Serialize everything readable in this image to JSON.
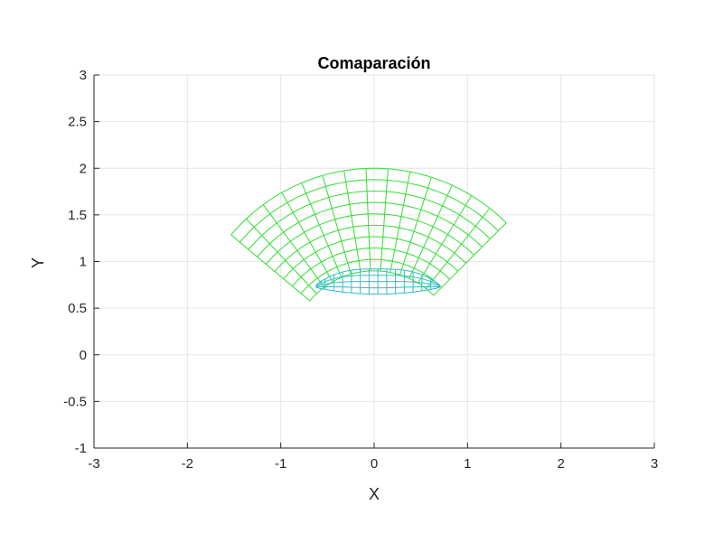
{
  "chart_data": {
    "type": "line",
    "title": "Comaparación",
    "xlabel": "X",
    "ylabel": "Y",
    "xlim": [
      -3,
      3
    ],
    "ylim": [
      -1,
      3
    ],
    "xticks": [
      -3,
      -2,
      -1,
      0,
      1,
      2,
      3
    ],
    "xtick_labels": [
      "-3",
      "-2",
      "-1",
      "0",
      "1",
      "2",
      "3"
    ],
    "yticks": [
      -1,
      -0.5,
      0,
      0.5,
      1,
      1.5,
      2,
      2.5,
      3
    ],
    "ytick_labels": [
      "-1",
      "-0.5",
      "0",
      "0.5",
      "1",
      "1.5",
      "2",
      "2.5",
      "3"
    ],
    "grid": true,
    "colors": {
      "outer_mesh": "#33dd33",
      "inner_mesh": "#33bbcc",
      "grid": "#e6e6e6",
      "axis": "#262626"
    },
    "series": [
      {
        "mesh": "outer",
        "radius_range": [
          0.9,
          2.0
        ],
        "angle_range_deg": [
          45,
          140
        ],
        "radial_lines": 15,
        "arc_lines": 10
      },
      {
        "mesh": "inner",
        "x_range": [
          -0.62,
          0.7
        ],
        "y_top": 0.92,
        "y_bottom_center": 0.65,
        "y_bottom_edges": 0.72,
        "columns": 15,
        "rows": 5
      }
    ]
  }
}
